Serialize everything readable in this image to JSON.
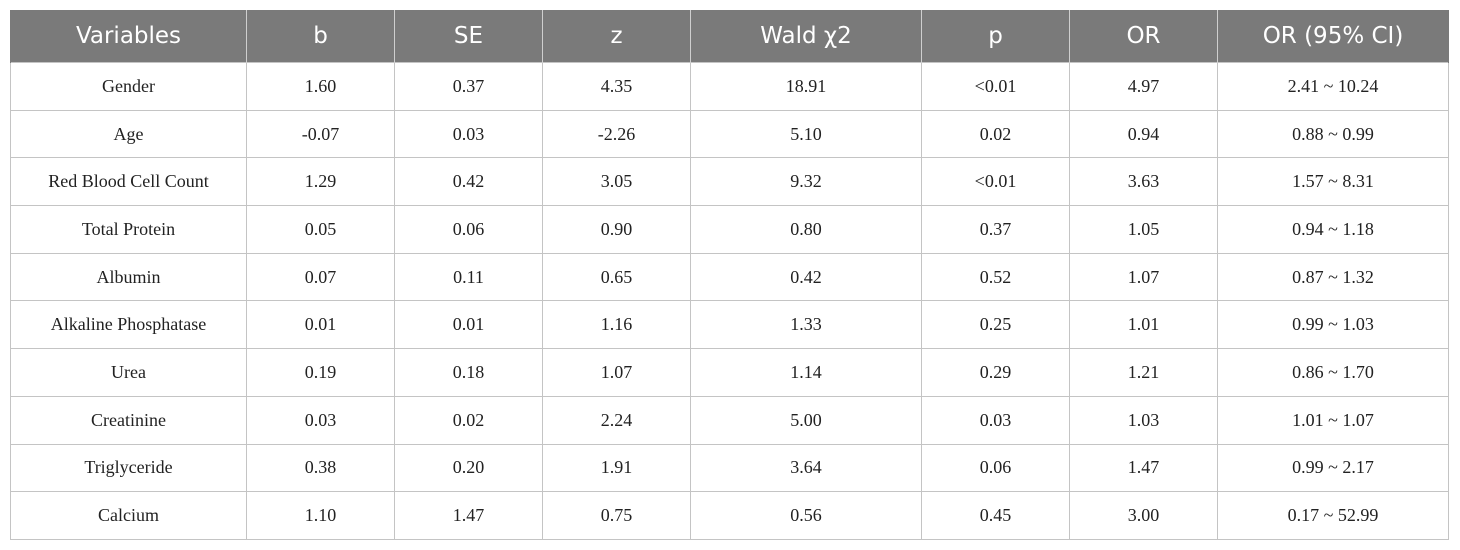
{
  "table": {
    "headers": [
      "Variables",
      "b",
      "SE",
      "z",
      "Wald χ2",
      "p",
      "OR",
      "OR (95% CI)"
    ],
    "rows": [
      [
        "Gender",
        "1.60",
        "0.37",
        "4.35",
        "18.91",
        "<0.01",
        "4.97",
        "2.41 ~ 10.24"
      ],
      [
        "Age",
        "-0.07",
        "0.03",
        "-2.26",
        "5.10",
        "0.02",
        "0.94",
        "0.88 ~ 0.99"
      ],
      [
        "Red Blood Cell Count",
        "1.29",
        "0.42",
        "3.05",
        "9.32",
        "<0.01",
        "3.63",
        "1.57 ~ 8.31"
      ],
      [
        "Total Protein",
        "0.05",
        "0.06",
        "0.90",
        "0.80",
        "0.37",
        "1.05",
        "0.94 ~ 1.18"
      ],
      [
        "Albumin",
        "0.07",
        "0.11",
        "0.65",
        "0.42",
        "0.52",
        "1.07",
        "0.87 ~ 1.32"
      ],
      [
        "Alkaline Phosphatase",
        "0.01",
        "0.01",
        "1.16",
        "1.33",
        "0.25",
        "1.01",
        "0.99 ~ 1.03"
      ],
      [
        "Urea",
        "0.19",
        "0.18",
        "1.07",
        "1.14",
        "0.29",
        "1.21",
        "0.86 ~ 1.70"
      ],
      [
        "Creatinine",
        "0.03",
        "0.02",
        "2.24",
        "5.00",
        "0.03",
        "1.03",
        "1.01 ~ 1.07"
      ],
      [
        "Triglyceride",
        "0.38",
        "0.20",
        "1.91",
        "3.64",
        "0.06",
        "1.47",
        "0.99 ~ 2.17"
      ],
      [
        "Calcium",
        "1.10",
        "1.47",
        "0.75",
        "0.56",
        "0.45",
        "3.00",
        "0.17 ~ 52.99"
      ]
    ]
  },
  "colors": {
    "header_background": "#7a7a7a",
    "header_text": "#ffffff",
    "grid_lines": "#c4c4c4"
  }
}
